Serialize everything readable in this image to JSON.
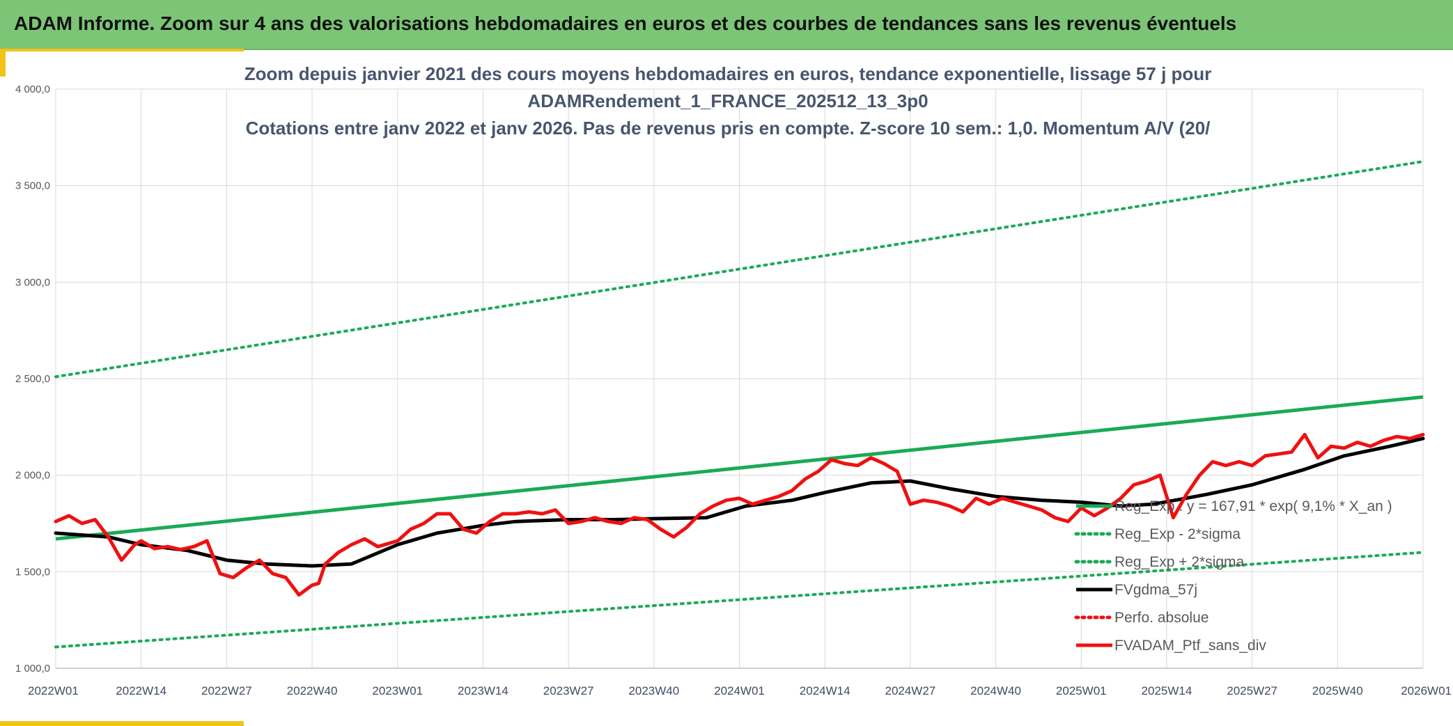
{
  "header": {
    "title": "ADAM Informe. Zoom sur 4 ans des valorisations hebdomadaires en euros et des courbes de tendances sans les revenus éventuels"
  },
  "colors": {
    "banner": "#7cc576",
    "accent": "#f2c318",
    "grid": "#d9d9d9",
    "reg_exp": "#1aaa55",
    "fvgdma": "#000000",
    "portfolio": "#ee1111"
  },
  "chart_data": {
    "type": "line",
    "title_lines": [
      "Zoom depuis janvier 2021 des cours moyens hebdomadaires en euros, tendance exponentielle, lissage 57 j pour",
      "ADAMRendement_1_FRANCE_202512_13_3p0",
      "Cotations entre janv 2022 et janv 2026. Pas de revenus pris en compte. Z-score 10 sem.: 1,0. Momentum A/V (20/"
    ],
    "x_tick_labels": [
      "2022W01",
      "2022W14",
      "2022W27",
      "2022W40",
      "2023W01",
      "2023W14",
      "2023W27",
      "2023W40",
      "2024W01",
      "2024W14",
      "2024W27",
      "2024W40",
      "2025W01",
      "2025W14",
      "2025W27",
      "2025W40",
      "2026W01"
    ],
    "y_tick_labels": [
      "1 000,0",
      "1 500,0",
      "2 000,0",
      "2 500,0",
      "3 000,0",
      "3 500,0",
      "4 000,0"
    ],
    "ylim": [
      1000,
      4000
    ],
    "xlim_weeks": [
      0,
      208
    ],
    "legend": [
      {
        "label": "Reg_Exp : y = 167,91 * exp( 9,1% *  X_an )",
        "style": "solid-green"
      },
      {
        "label": "Reg_Exp - 2*sigma",
        "style": "dotted-green"
      },
      {
        "label": "Reg_Exp + 2*sigma",
        "style": "dotted-green"
      },
      {
        "label": "FVgdma_57j",
        "style": "solid-black"
      },
      {
        "label": "Perfo. absolue",
        "style": "dotted-red"
      },
      {
        "label": "FVADAM_Ptf_sans_div",
        "style": "solid-red"
      }
    ],
    "series": [
      {
        "name": "Reg_Exp",
        "x": [
          0,
          208
        ],
        "y": [
          1670,
          2405
        ]
      },
      {
        "name": "Reg_Exp - 2*sigma",
        "x": [
          0,
          208
        ],
        "y": [
          1110,
          1600
        ]
      },
      {
        "name": "Reg_Exp + 2*sigma",
        "x": [
          0,
          208
        ],
        "y": [
          2510,
          3625
        ]
      },
      {
        "name": "FVgdma_57j",
        "x": [
          0,
          8,
          13,
          20,
          26,
          32,
          39,
          45,
          52,
          58,
          65,
          70,
          78,
          85,
          91,
          99,
          105,
          112,
          117,
          124,
          130,
          136,
          143,
          150,
          156,
          162,
          167,
          175,
          182,
          190,
          196,
          203,
          208
        ],
        "y": [
          1700,
          1680,
          1640,
          1610,
          1560,
          1540,
          1530,
          1540,
          1640,
          1700,
          1740,
          1760,
          1770,
          1770,
          1775,
          1780,
          1840,
          1870,
          1910,
          1960,
          1970,
          1930,
          1890,
          1870,
          1860,
          1840,
          1850,
          1900,
          1950,
          2030,
          2100,
          2150,
          2190
        ]
      },
      {
        "name": "FVADAM_Ptf_sans_div",
        "x": [
          0,
          2,
          4,
          6,
          8,
          10,
          12,
          13,
          15,
          17,
          19,
          21,
          23,
          25,
          27,
          29,
          31,
          33,
          35,
          37,
          39,
          40,
          41,
          43,
          45,
          47,
          49,
          52,
          54,
          56,
          58,
          60,
          62,
          64,
          66,
          68,
          70,
          72,
          74,
          76,
          78,
          80,
          82,
          84,
          86,
          88,
          90,
          92,
          94,
          96,
          98,
          100,
          102,
          104,
          106,
          108,
          110,
          112,
          114,
          116,
          118,
          120,
          122,
          124,
          126,
          128,
          130,
          132,
          134,
          136,
          138,
          140,
          142,
          144,
          146,
          148,
          150,
          152,
          154,
          156,
          158,
          160,
          162,
          164,
          166,
          168,
          170,
          172,
          174,
          176,
          178,
          180,
          182,
          184,
          186,
          188,
          190,
          192,
          194,
          196,
          198,
          200,
          202,
          204,
          206,
          208
        ],
        "y": [
          1760,
          1790,
          1750,
          1770,
          1680,
          1560,
          1640,
          1660,
          1620,
          1630,
          1615,
          1630,
          1660,
          1490,
          1470,
          1520,
          1560,
          1490,
          1470,
          1380,
          1430,
          1440,
          1540,
          1600,
          1640,
          1670,
          1630,
          1660,
          1720,
          1750,
          1800,
          1800,
          1720,
          1700,
          1760,
          1800,
          1800,
          1810,
          1800,
          1820,
          1750,
          1760,
          1780,
          1760,
          1750,
          1780,
          1770,
          1720,
          1680,
          1730,
          1800,
          1840,
          1870,
          1880,
          1850,
          1870,
          1890,
          1920,
          1980,
          2020,
          2080,
          2060,
          2050,
          2090,
          2060,
          2020,
          1850,
          1870,
          1860,
          1840,
          1810,
          1880,
          1850,
          1880,
          1860,
          1840,
          1820,
          1780,
          1760,
          1830,
          1790,
          1830,
          1880,
          1950,
          1970,
          2000,
          1780,
          1900,
          2000,
          2070,
          2050,
          2070,
          2050,
          2100,
          2110,
          2120,
          2210,
          2090,
          2150,
          2140,
          2170,
          2150,
          2180,
          2200,
          2190,
          2210
        ]
      }
    ]
  }
}
